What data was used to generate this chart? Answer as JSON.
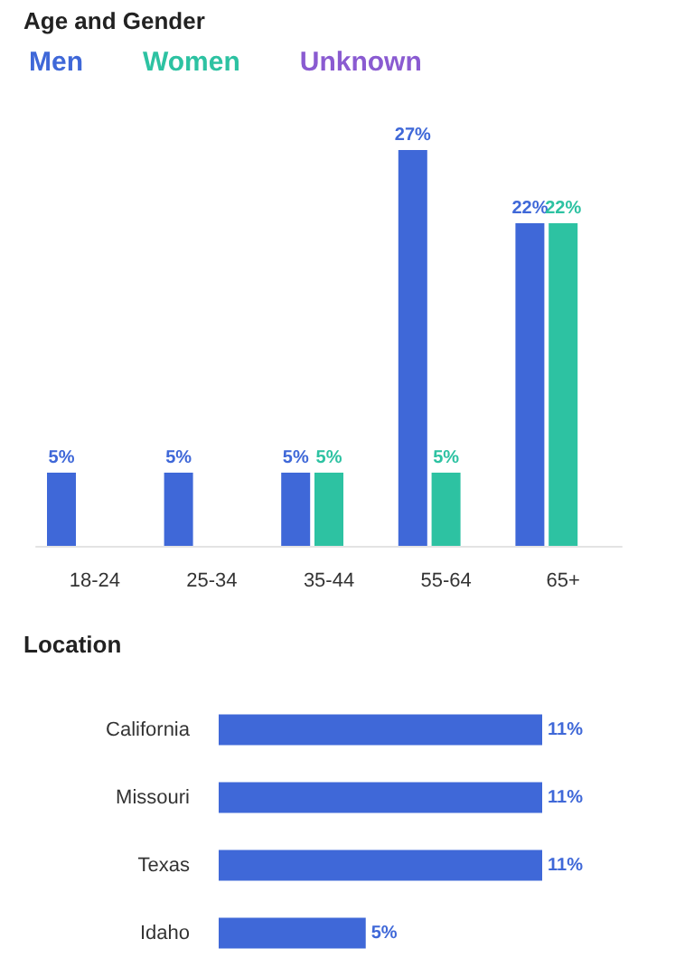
{
  "chart_data": [
    {
      "type": "bar",
      "title": "Age and Gender",
      "categories": [
        "18-24",
        "25-34",
        "35-44",
        "55-64",
        "65+"
      ],
      "legend": "top left",
      "series": [
        {
          "name": "Men",
          "color": "#3f68d8",
          "values": [
            5,
            5,
            5,
            27,
            22
          ],
          "value_labels": [
            "5%",
            "5%",
            "5%",
            "27%",
            "22%"
          ]
        },
        {
          "name": "Women",
          "color": "#2dc2a2",
          "values": [
            0,
            0,
            5,
            5,
            22
          ],
          "value_labels": [
            null,
            null,
            "5%",
            "5%",
            "22%"
          ]
        },
        {
          "name": "Unknown",
          "color": "#8a5bd1",
          "values": [
            0,
            0,
            0,
            0,
            0
          ],
          "value_labels": [
            null,
            null,
            null,
            null,
            null
          ]
        }
      ]
    },
    {
      "type": "bar",
      "title": "Location",
      "orientation": "horizontal",
      "categories": [
        "California",
        "Missouri",
        "Texas",
        "Idaho"
      ],
      "color": "#3f68d8",
      "values": [
        11,
        11,
        11,
        5
      ],
      "value_labels": [
        "11%",
        "11%",
        "11%",
        "5%"
      ]
    }
  ]
}
